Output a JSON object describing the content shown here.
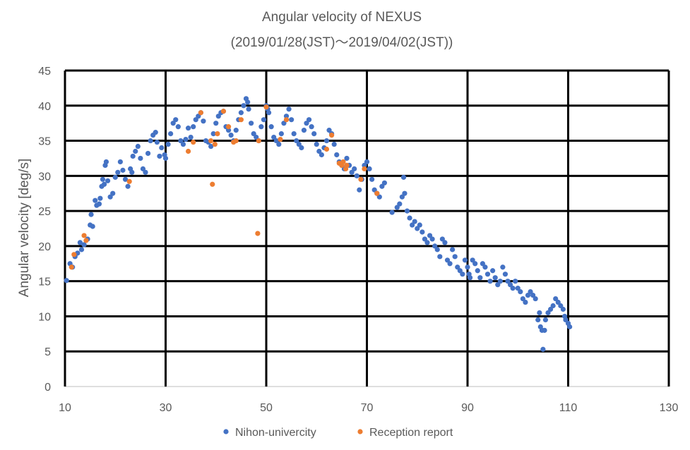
{
  "chart_data": {
    "type": "scatter",
    "title": "Angular velocity of NEXUS",
    "subtitle": "(2019/01/28(JST)～2019/04/02(JST))",
    "xlabel": "",
    "ylabel": "Angular velocity [deg/s]",
    "xlim": [
      10,
      130
    ],
    "ylim": [
      0,
      45
    ],
    "xticks": [
      "10",
      "30",
      "50",
      "70",
      "90",
      "110",
      "130"
    ],
    "yticks": [
      "0",
      "5",
      "10",
      "15",
      "20",
      "25",
      "30",
      "35",
      "40",
      "45"
    ],
    "grid": true,
    "legend_position": "bottom",
    "series": [
      {
        "name": "Nihon-univercity",
        "color": "#4472C4",
        "points": [
          [
            10.3,
            15.1
          ],
          [
            11.0,
            17.5
          ],
          [
            11.5,
            17.0
          ],
          [
            12.0,
            18.5
          ],
          [
            12.5,
            19.0
          ],
          [
            13.0,
            20.5
          ],
          [
            13.3,
            19.5
          ],
          [
            13.8,
            20.2
          ],
          [
            14.5,
            21.0
          ],
          [
            15.0,
            23.0
          ],
          [
            15.2,
            24.5
          ],
          [
            15.5,
            22.8
          ],
          [
            16.0,
            26.5
          ],
          [
            16.3,
            25.8
          ],
          [
            16.8,
            26.0
          ],
          [
            17.0,
            26.8
          ],
          [
            17.3,
            28.5
          ],
          [
            17.5,
            29.5
          ],
          [
            17.8,
            28.8
          ],
          [
            18.0,
            31.5
          ],
          [
            18.2,
            32.0
          ],
          [
            18.5,
            29.3
          ],
          [
            19.0,
            27.0
          ],
          [
            19.5,
            27.5
          ],
          [
            20.0,
            29.8
          ],
          [
            20.5,
            30.5
          ],
          [
            21.0,
            32.0
          ],
          [
            21.5,
            30.8
          ],
          [
            22.0,
            29.5
          ],
          [
            22.5,
            28.5
          ],
          [
            23.0,
            31.0
          ],
          [
            23.3,
            30.5
          ],
          [
            23.5,
            32.8
          ],
          [
            24.0,
            33.5
          ],
          [
            24.5,
            34.2
          ],
          [
            25.0,
            32.5
          ],
          [
            25.5,
            31.0
          ],
          [
            26.0,
            30.5
          ],
          [
            26.5,
            33.2
          ],
          [
            27.0,
            35.0
          ],
          [
            27.5,
            35.8
          ],
          [
            28.0,
            36.2
          ],
          [
            28.3,
            34.8
          ],
          [
            28.8,
            32.8
          ],
          [
            29.2,
            34.0
          ],
          [
            29.8,
            33.0
          ],
          [
            30.0,
            32.5
          ],
          [
            30.5,
            34.5
          ],
          [
            31.0,
            36.0
          ],
          [
            31.5,
            37.5
          ],
          [
            32.0,
            38.0
          ],
          [
            32.5,
            37.0
          ],
          [
            33.0,
            35.0
          ],
          [
            33.5,
            34.5
          ],
          [
            34.0,
            35.2
          ],
          [
            34.5,
            36.8
          ],
          [
            35.0,
            35.5
          ],
          [
            35.5,
            37.0
          ],
          [
            36.0,
            38.0
          ],
          [
            36.5,
            38.5
          ],
          [
            37.0,
            39.0
          ],
          [
            37.5,
            37.8
          ],
          [
            38.0,
            35.0
          ],
          [
            38.5,
            34.8
          ],
          [
            39.0,
            34.2
          ],
          [
            39.5,
            36.0
          ],
          [
            40.0,
            37.5
          ],
          [
            40.5,
            38.5
          ],
          [
            41.0,
            39.0
          ],
          [
            41.5,
            39.2
          ],
          [
            42.0,
            37.0
          ],
          [
            42.5,
            36.5
          ],
          [
            43.0,
            35.8
          ],
          [
            43.5,
            35.0
          ],
          [
            44.0,
            36.5
          ],
          [
            44.5,
            38.0
          ],
          [
            45.0,
            39.0
          ],
          [
            45.5,
            40.0
          ],
          [
            46.0,
            41.0
          ],
          [
            46.3,
            40.5
          ],
          [
            46.5,
            39.5
          ],
          [
            47.0,
            37.5
          ],
          [
            47.5,
            36.0
          ],
          [
            48.0,
            35.5
          ],
          [
            48.5,
            35.0
          ],
          [
            49.0,
            37.0
          ],
          [
            49.5,
            38.0
          ],
          [
            50.0,
            40.0
          ],
          [
            50.3,
            39.5
          ],
          [
            50.5,
            39.0
          ],
          [
            51.0,
            37.0
          ],
          [
            51.5,
            35.5
          ],
          [
            52.0,
            35.0
          ],
          [
            52.5,
            34.5
          ],
          [
            53.0,
            36.0
          ],
          [
            53.5,
            37.5
          ],
          [
            54.0,
            38.5
          ],
          [
            54.5,
            39.5
          ],
          [
            55.0,
            38.0
          ],
          [
            55.5,
            36.0
          ],
          [
            56.0,
            35.0
          ],
          [
            56.5,
            34.5
          ],
          [
            57.0,
            34.0
          ],
          [
            57.5,
            36.5
          ],
          [
            58.0,
            37.5
          ],
          [
            58.5,
            38.0
          ],
          [
            59.0,
            37.0
          ],
          [
            59.5,
            36.0
          ],
          [
            60.0,
            34.5
          ],
          [
            60.5,
            33.5
          ],
          [
            61.0,
            33.0
          ],
          [
            61.5,
            34.0
          ],
          [
            62.0,
            35.0
          ],
          [
            62.5,
            36.5
          ],
          [
            63.0,
            36.0
          ],
          [
            63.5,
            34.5
          ],
          [
            64.0,
            33.0
          ],
          [
            64.5,
            32.0
          ],
          [
            65.0,
            31.5
          ],
          [
            65.5,
            31.0
          ],
          [
            66.0,
            32.5
          ],
          [
            66.5,
            31.5
          ],
          [
            67.0,
            30.5
          ],
          [
            67.5,
            31.0
          ],
          [
            68.0,
            30.0
          ],
          [
            68.5,
            28.0
          ],
          [
            69.0,
            29.5
          ],
          [
            69.5,
            31.5
          ],
          [
            70.0,
            32.0
          ],
          [
            70.5,
            31.0
          ],
          [
            71.0,
            29.5
          ],
          [
            71.5,
            28.0
          ],
          [
            72.0,
            27.5
          ],
          [
            72.5,
            27.0
          ],
          [
            73.0,
            28.5
          ],
          [
            73.5,
            29.0
          ],
          [
            75.0,
            24.8
          ],
          [
            76.0,
            25.5
          ],
          [
            76.5,
            26.0
          ],
          [
            77.0,
            27.0
          ],
          [
            77.3,
            29.8
          ],
          [
            77.5,
            27.5
          ],
          [
            78.0,
            25.0
          ],
          [
            78.5,
            24.0
          ],
          [
            79.0,
            23.0
          ],
          [
            79.5,
            23.5
          ],
          [
            80.0,
            22.5
          ],
          [
            80.5,
            23.0
          ],
          [
            81.0,
            22.0
          ],
          [
            81.5,
            21.0
          ],
          [
            82.0,
            20.5
          ],
          [
            82.5,
            21.5
          ],
          [
            83.0,
            21.0
          ],
          [
            83.5,
            20.0
          ],
          [
            84.0,
            19.5
          ],
          [
            84.5,
            18.5
          ],
          [
            85.0,
            21.0
          ],
          [
            85.5,
            20.5
          ],
          [
            86.0,
            18.0
          ],
          [
            86.5,
            17.5
          ],
          [
            87.0,
            19.5
          ],
          [
            87.5,
            18.5
          ],
          [
            88.0,
            17.0
          ],
          [
            88.5,
            16.5
          ],
          [
            89.0,
            16.0
          ],
          [
            89.5,
            18.0
          ],
          [
            90.0,
            17.0
          ],
          [
            90.3,
            16.0
          ],
          [
            90.5,
            15.5
          ],
          [
            91.0,
            18.0
          ],
          [
            91.5,
            17.5
          ],
          [
            92.0,
            16.5
          ],
          [
            92.5,
            15.5
          ],
          [
            93.0,
            17.5
          ],
          [
            93.5,
            17.0
          ],
          [
            94.0,
            16.0
          ],
          [
            94.5,
            15.0
          ],
          [
            95.0,
            16.5
          ],
          [
            95.5,
            15.5
          ],
          [
            96.0,
            14.5
          ],
          [
            96.5,
            15.0
          ],
          [
            97.0,
            17.0
          ],
          [
            97.5,
            16.0
          ],
          [
            98.0,
            15.0
          ],
          [
            98.5,
            14.5
          ],
          [
            99.0,
            14.0
          ],
          [
            99.5,
            15.0
          ],
          [
            100.0,
            14.0
          ],
          [
            100.5,
            13.5
          ],
          [
            101.0,
            12.5
          ],
          [
            101.5,
            12.0
          ],
          [
            102.0,
            13.0
          ],
          [
            102.5,
            13.5
          ],
          [
            103.0,
            13.0
          ],
          [
            103.5,
            12.5
          ],
          [
            104.0,
            9.5
          ],
          [
            104.3,
            10.5
          ],
          [
            104.5,
            8.5
          ],
          [
            104.8,
            8.0
          ],
          [
            105.0,
            5.3
          ],
          [
            105.3,
            8.0
          ],
          [
            105.5,
            9.5
          ],
          [
            106.0,
            10.5
          ],
          [
            106.5,
            11.0
          ],
          [
            107.0,
            11.5
          ],
          [
            107.5,
            12.5
          ],
          [
            108.0,
            12.0
          ],
          [
            108.5,
            11.5
          ],
          [
            109.0,
            11.0
          ],
          [
            109.3,
            10.0
          ],
          [
            109.5,
            9.5
          ],
          [
            110.0,
            9.0
          ],
          [
            110.3,
            8.5
          ]
        ]
      },
      {
        "name": "Reception report",
        "color": "#ED7D31",
        "points": [
          [
            11.3,
            17.0
          ],
          [
            11.8,
            18.8
          ],
          [
            13.8,
            21.5
          ],
          [
            14.2,
            20.8
          ],
          [
            22.8,
            29.2
          ],
          [
            34.5,
            33.5
          ],
          [
            35.5,
            34.8
          ],
          [
            37.0,
            39.0
          ],
          [
            39.0,
            35.0
          ],
          [
            39.3,
            28.8
          ],
          [
            39.8,
            34.5
          ],
          [
            40.3,
            36.0
          ],
          [
            41.5,
            39.2
          ],
          [
            42.5,
            37.0
          ],
          [
            43.5,
            34.8
          ],
          [
            44.0,
            35.0
          ],
          [
            45.0,
            38.0
          ],
          [
            48.3,
            21.8
          ],
          [
            48.5,
            35.0
          ],
          [
            50.0,
            39.8
          ],
          [
            52.8,
            35.2
          ],
          [
            54.0,
            38.0
          ],
          [
            62.0,
            33.8
          ],
          [
            63.0,
            35.8
          ],
          [
            64.5,
            31.8
          ],
          [
            65.0,
            31.5
          ],
          [
            65.3,
            32.0
          ],
          [
            65.8,
            31.0
          ],
          [
            66.0,
            31.5
          ],
          [
            68.8,
            29.5
          ],
          [
            69.5,
            31.0
          ],
          [
            72.0,
            27.5
          ]
        ]
      }
    ]
  }
}
